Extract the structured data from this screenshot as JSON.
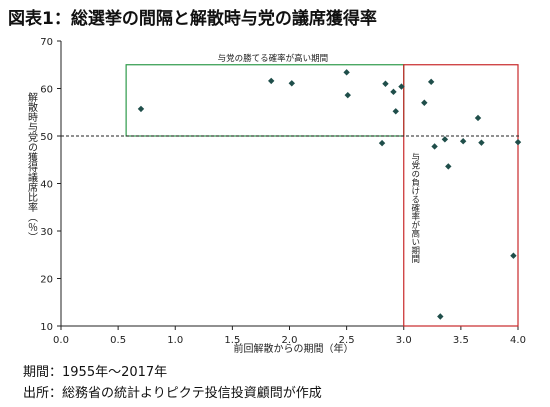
{
  "title": "図表1：総選挙の間隔と解散時与党の議席獲得率",
  "notes": {
    "period": "期間：1955年～2017年",
    "source": "出所：総務省の統計よりピクテ投信投資顧問が作成"
  },
  "chart_data": {
    "type": "scatter",
    "xlabel": "前回解散からの期間（年）",
    "ylabel": "解散時与党の獲得議席比率（％）",
    "xlim": [
      0.0,
      4.0
    ],
    "ylim": [
      10,
      70
    ],
    "x_ticks": [
      "0.0",
      "0.5",
      "1.0",
      "1.5",
      "2.0",
      "2.5",
      "3.0",
      "3.5",
      "4.0"
    ],
    "y_ticks": [
      "10",
      "20",
      "30",
      "40",
      "50",
      "60",
      "70"
    ],
    "grid": false,
    "reference_line": {
      "y": 50,
      "style": "dashed"
    },
    "marker_color": "#1f4e4a",
    "regions": [
      {
        "label": "与党の勝てる確率が高い期間",
        "x": [
          0.57,
          3.0
        ],
        "y": [
          50,
          65
        ],
        "color": "#2e9a4a"
      },
      {
        "label": "与党の負ける確率が高い期間",
        "x": [
          3.0,
          4.0
        ],
        "y": [
          10,
          65
        ],
        "color": "#c8282a"
      }
    ],
    "points": [
      {
        "x": 0.7,
        "y": 55.7
      },
      {
        "x": 1.84,
        "y": 61.6
      },
      {
        "x": 2.02,
        "y": 61.1
      },
      {
        "x": 2.5,
        "y": 63.4
      },
      {
        "x": 2.51,
        "y": 58.6
      },
      {
        "x": 2.81,
        "y": 48.5
      },
      {
        "x": 2.84,
        "y": 61.0
      },
      {
        "x": 2.91,
        "y": 59.3
      },
      {
        "x": 2.93,
        "y": 55.2
      },
      {
        "x": 2.98,
        "y": 60.4
      },
      {
        "x": 3.18,
        "y": 57.0
      },
      {
        "x": 3.24,
        "y": 61.4
      },
      {
        "x": 3.27,
        "y": 47.8
      },
      {
        "x": 3.32,
        "y": 12.0
      },
      {
        "x": 3.36,
        "y": 49.3
      },
      {
        "x": 3.39,
        "y": 43.6
      },
      {
        "x": 3.52,
        "y": 48.9
      },
      {
        "x": 3.65,
        "y": 53.8
      },
      {
        "x": 3.68,
        "y": 48.6
      },
      {
        "x": 3.96,
        "y": 24.8
      },
      {
        "x": 4.0,
        "y": 48.7
      }
    ]
  }
}
